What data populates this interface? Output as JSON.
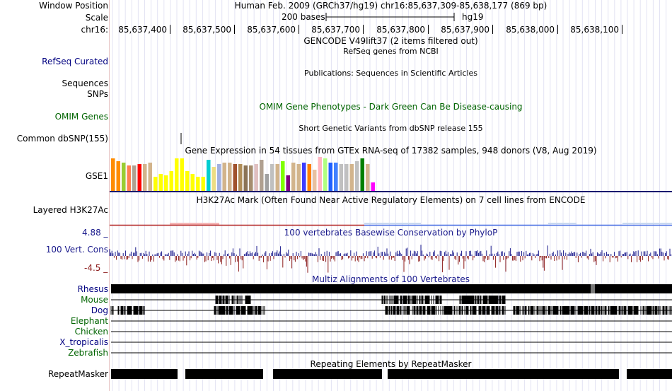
{
  "header": {
    "window_position_label": "Window Position",
    "window_position_value": "Human Feb. 2009 (GRCh37/hg19)   chr16:85,637,309-85,638,177 (869 bp)",
    "scale_label": "Scale",
    "scale_bar_text": "200 bases",
    "scale_assembly": "hg19",
    "chrom_label": "chr16:",
    "ticks": [
      "85,637,400",
      "85,637,500",
      "85,637,600",
      "85,637,700",
      "85,637,800",
      "85,637,900",
      "85,638,000",
      "85,638,100"
    ]
  },
  "tracks": {
    "gencode_title": "GENCODE V49lift37 (2 items filtered out)",
    "refseq_title": "RefSeq genes from NCBI",
    "refseq_label": "RefSeq Curated",
    "publications_title": "Publications: Sequences in Scientific Articles",
    "sequences_label": "Sequences",
    "snps_label": "SNPs",
    "omim_title": "OMIM Gene Phenotypes - Dark Green Can Be Disease-causing",
    "omim_label": "OMIM Genes",
    "dbsnp_title": "Short Genetic Variants from dbSNP release 155",
    "dbsnp_label": "Common dbSNP(155)",
    "gtex_title": "Gene Expression in 54 tissues from GTEx RNA-seq of 17382 samples, 948 donors (V8, Aug 2019)",
    "gtex_label": "GSE1",
    "h3k27ac_title": "H3K27Ac Mark (Often Found Near Active Regulatory Elements) on 7 cell lines from ENCODE",
    "h3k27ac_label": "Layered H3K27Ac",
    "phylop_title": "100 vertebrates Basewise Conservation by PhyloP",
    "phylop_label": "100 Vert. Cons",
    "phylop_max": "4.88 _",
    "phylop_min": "-4.5 _",
    "multiz_title": "Multiz Alignments of 100 Vertebrates",
    "species": [
      "Rhesus",
      "Mouse",
      "Dog",
      "Elephant",
      "Chicken",
      "X_tropicalis",
      "Zebrafish"
    ],
    "repeat_title": "Repeating Elements by RepeatMasker",
    "repeat_label": "RepeatMasker"
  },
  "colors": {
    "blue_label": "#000080",
    "green_label": "#006400",
    "phylop_pos": "#1a1a8c",
    "phylop_neg": "#8b1a1a",
    "gtex_bars": [
      "#ff8c00",
      "#ff8c00",
      "#9acd32",
      "#ff7f50",
      "#b0a090",
      "#ff0000",
      "#d2b48c",
      "#d2b48c",
      "#ffff00",
      "#ffff00",
      "#ffff00",
      "#ffff00",
      "#ffff00",
      "#ffff00",
      "#ffff00",
      "#ffff00",
      "#ffff00",
      "#ffff00",
      "#00ced1",
      "#eedd82",
      "#a0b0e0",
      "#d2b48c",
      "#d2b48c",
      "#a0522d",
      "#b08d57",
      "#8b7355",
      "#a58d6f",
      "#e0c0c0",
      "#b0a090",
      "#a0a0a0",
      "#c0c0c0",
      "#d2b48c",
      "#7fff00",
      "#800080",
      "#d2b48c",
      "#d2b48c",
      "#3c3cff",
      "#ff7f00",
      "#e8c0a0",
      "#ffb6c1",
      "#b0ff80",
      "#2060ff",
      "#4080ff",
      "#c0c0c0",
      "#c0c0c0",
      "#d2b48c",
      "#c0c0c0",
      "#008000",
      "#d2b48c",
      "#ff00ff"
    ]
  }
}
